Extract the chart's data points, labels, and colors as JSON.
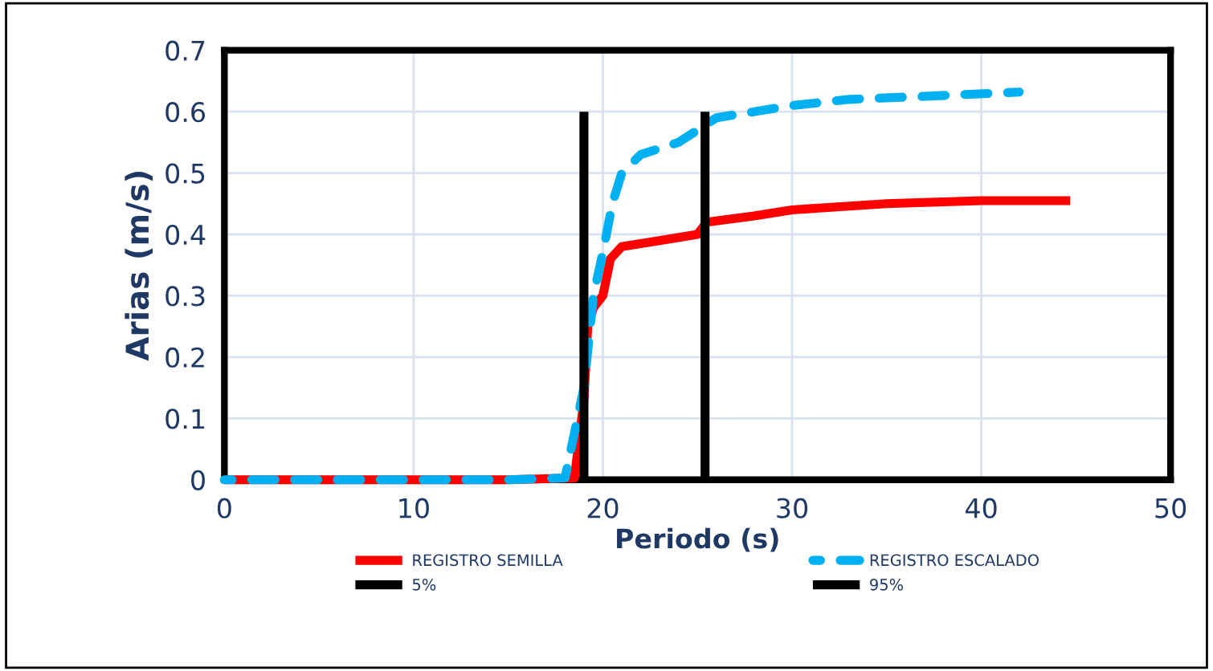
{
  "chart_data": {
    "type": "line",
    "xlabel": "Periodo (s)",
    "ylabel": "Arias (m/s)",
    "xlim": [
      0,
      50
    ],
    "ylim": [
      0,
      0.7
    ],
    "xticks": [
      0,
      10,
      20,
      30,
      40,
      50
    ],
    "yticks": [
      0,
      0.1,
      0.2,
      0.3,
      0.4,
      0.5,
      0.6,
      0.7
    ],
    "grid": true,
    "legend": "bottom",
    "marker": "none",
    "series": [
      {
        "name": "REGISTRO SEMILLA",
        "color": "#ff0000",
        "line_style": "solid",
        "x": [
          0,
          5,
          10,
          15,
          18.5,
          19,
          19.2,
          19.5,
          20,
          20.4,
          21,
          23,
          25,
          25.5,
          28,
          30,
          35,
          40,
          44.7
        ],
        "values": [
          0,
          0,
          0,
          0,
          0.003,
          0.13,
          0.25,
          0.28,
          0.3,
          0.36,
          0.38,
          0.39,
          0.4,
          0.42,
          0.43,
          0.44,
          0.45,
          0.455,
          0.455
        ]
      },
      {
        "name": "REGISTRO ESCALADO",
        "color": "#00b0f0",
        "line_style": "dashed",
        "x": [
          0,
          5,
          10,
          15,
          18,
          19,
          19.5,
          20,
          20.5,
          21,
          22,
          24,
          25,
          26,
          28,
          30,
          33,
          37,
          42
        ],
        "values": [
          0,
          0,
          0,
          0,
          0.003,
          0.15,
          0.3,
          0.37,
          0.45,
          0.5,
          0.53,
          0.55,
          0.57,
          0.59,
          0.6,
          0.61,
          0.62,
          0.625,
          0.632
        ]
      },
      {
        "name": "5%",
        "color": "#000000",
        "line_style": "solid",
        "x": [
          19,
          19
        ],
        "values": [
          0,
          0.6
        ]
      },
      {
        "name": "95%",
        "color": "#000000",
        "line_style": "solid",
        "x": [
          25.4,
          25.4
        ],
        "values": [
          0,
          0.6
        ]
      }
    ]
  }
}
